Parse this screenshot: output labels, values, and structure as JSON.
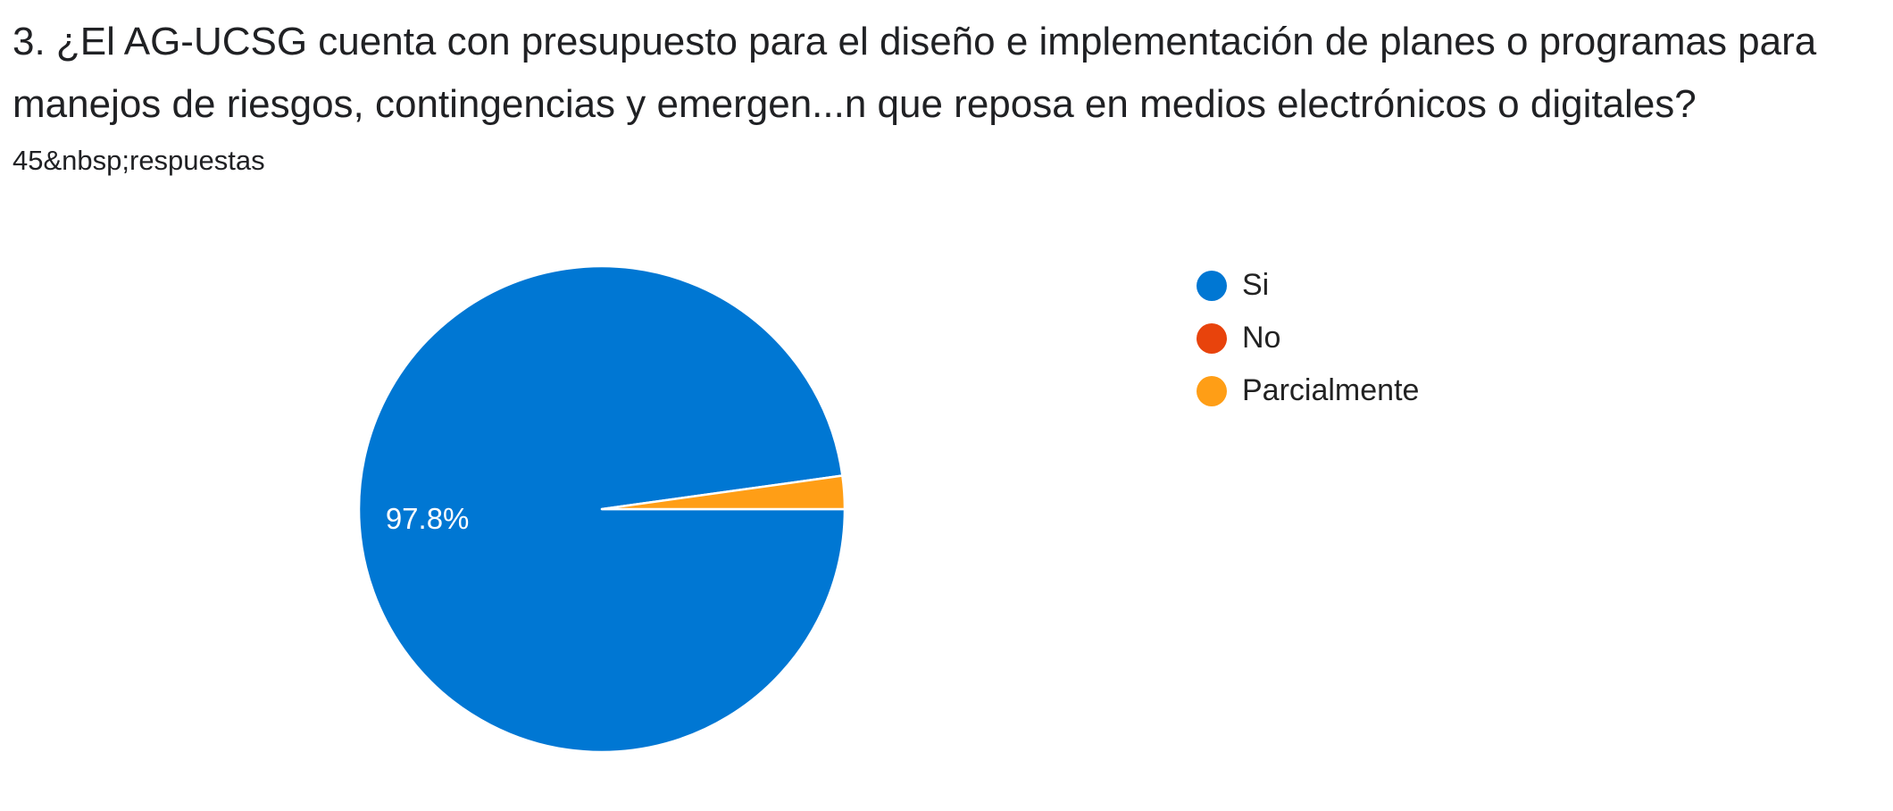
{
  "question": {
    "title": "3. ¿El AG-UCSG cuenta con presupuesto para el diseño e implementación de planes o programas para manejos de riesgos, contingencias y emergen...n que reposa en medios electrónicos o digitales?",
    "responses": "45&nbsp;respuestas"
  },
  "chart_data": {
    "type": "pie",
    "title": "",
    "total_responses": 45,
    "slices": [
      {
        "label": "Si",
        "value": 97.8,
        "color": "#0077d3",
        "data_label": "97.8%"
      },
      {
        "label": "No",
        "value": 0,
        "color": "#e8430c",
        "data_label": ""
      },
      {
        "label": "Parcialmente",
        "value": 2.2,
        "color": "#ff9e16",
        "data_label": ""
      }
    ],
    "legend_position": "right"
  }
}
